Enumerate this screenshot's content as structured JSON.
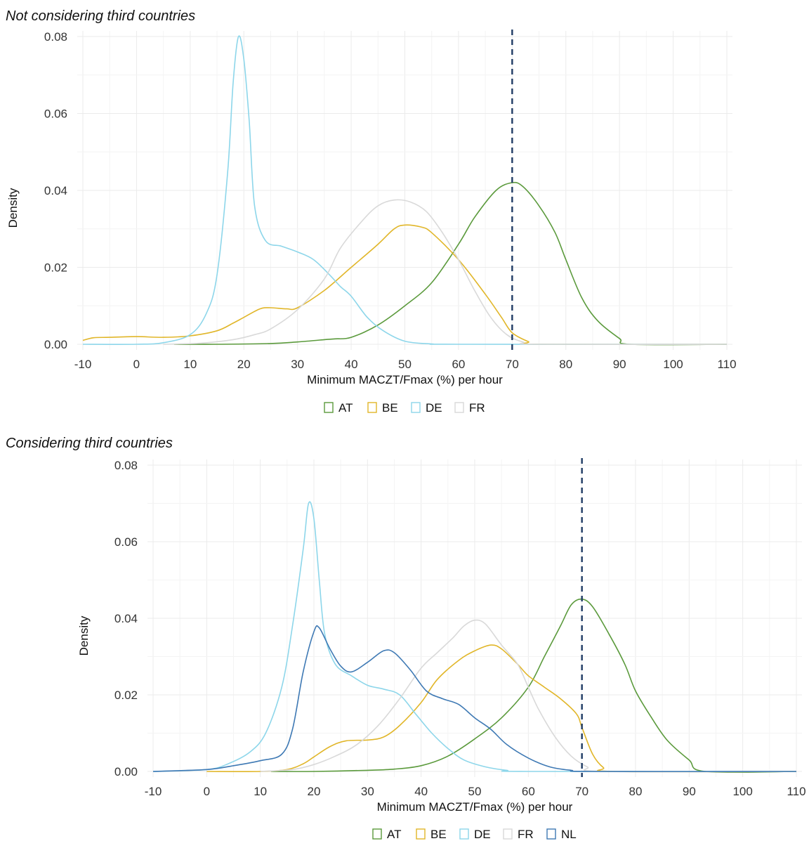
{
  "panels": [
    {
      "title": "Not considering third countries"
    },
    {
      "title": "Considering third countries"
    }
  ],
  "chart_data": [
    {
      "type": "line",
      "title": "Not considering third countries",
      "xlabel": "Minimum MACZT/Fmax (%) per hour",
      "ylabel": "Density",
      "xlim": [
        -10,
        110
      ],
      "ylim": [
        0,
        0.08
      ],
      "xticks": [
        "-10",
        "0",
        "10",
        "20",
        "30",
        "40",
        "50",
        "60",
        "70",
        "80",
        "90",
        "100",
        "110"
      ],
      "yticks": [
        "0.00",
        "0.02",
        "0.04",
        "0.06",
        "0.08"
      ],
      "grid": true,
      "legend_position": "bottom",
      "reference_line": {
        "x": 70,
        "style": "dashed",
        "color": "#1f3b64"
      },
      "series": [
        {
          "name": "AT",
          "color": "#5b9a3c",
          "points": [
            [
              7,
              0
            ],
            [
              15,
              0
            ],
            [
              25,
              0.0002
            ],
            [
              30,
              0.0006
            ],
            [
              35,
              0.0012
            ],
            [
              37,
              0.0014
            ],
            [
              40,
              0.0018
            ],
            [
              45,
              0.005
            ],
            [
              50,
              0.01
            ],
            [
              55,
              0.016
            ],
            [
              60,
              0.026
            ],
            [
              63,
              0.033
            ],
            [
              67,
              0.04
            ],
            [
              70,
              0.042
            ],
            [
              72,
              0.041
            ],
            [
              75,
              0.036
            ],
            [
              78,
              0.029
            ],
            [
              80,
              0.022
            ],
            [
              83,
              0.012
            ],
            [
              86,
              0.006
            ],
            [
              90,
              0.0015
            ],
            [
              92,
              0
            ],
            [
              110,
              0
            ]
          ]
        },
        {
          "name": "BE",
          "color": "#e1b629",
          "points": [
            [
              -10,
              0.001
            ],
            [
              -8,
              0.0017
            ],
            [
              -5,
              0.0018
            ],
            [
              0,
              0.002
            ],
            [
              5,
              0.0018
            ],
            [
              10,
              0.0022
            ],
            [
              15,
              0.0035
            ],
            [
              18,
              0.0055
            ],
            [
              20,
              0.007
            ],
            [
              23,
              0.0092
            ],
            [
              25,
              0.0095
            ],
            [
              28,
              0.0092
            ],
            [
              30,
              0.0095
            ],
            [
              35,
              0.014
            ],
            [
              40,
              0.02
            ],
            [
              45,
              0.026
            ],
            [
              48,
              0.03
            ],
            [
              50,
              0.031
            ],
            [
              53,
              0.0305
            ],
            [
              55,
              0.029
            ],
            [
              60,
              0.022
            ],
            [
              65,
              0.013
            ],
            [
              68,
              0.007
            ],
            [
              70,
              0.003
            ],
            [
              73,
              0.0007
            ],
            [
              75,
              0
            ],
            [
              110,
              0
            ]
          ]
        },
        {
          "name": "DE",
          "color": "#8dd6ea",
          "points": [
            [
              -10,
              0
            ],
            [
              0,
              0
            ],
            [
              5,
              0.0004
            ],
            [
              10,
              0.0025
            ],
            [
              13,
              0.008
            ],
            [
              15,
              0.018
            ],
            [
              17,
              0.045
            ],
            [
              18,
              0.068
            ],
            [
              19,
              0.08
            ],
            [
              20,
              0.074
            ],
            [
              21,
              0.058
            ],
            [
              22,
              0.036
            ],
            [
              24,
              0.027
            ],
            [
              27,
              0.0255
            ],
            [
              30,
              0.024
            ],
            [
              33,
              0.022
            ],
            [
              36,
              0.018
            ],
            [
              38,
              0.015
            ],
            [
              40,
              0.0125
            ],
            [
              43,
              0.007
            ],
            [
              46,
              0.0035
            ],
            [
              50,
              0.0008
            ],
            [
              55,
              0.0001
            ],
            [
              60,
              0
            ],
            [
              110,
              0
            ]
          ]
        },
        {
          "name": "FR",
          "color": "#d9d9d9",
          "points": [
            [
              5,
              0
            ],
            [
              12,
              0.0003
            ],
            [
              18,
              0.0012
            ],
            [
              22,
              0.0025
            ],
            [
              25,
              0.004
            ],
            [
              30,
              0.009
            ],
            [
              35,
              0.017
            ],
            [
              38,
              0.025
            ],
            [
              42,
              0.032
            ],
            [
              45,
              0.036
            ],
            [
              48,
              0.0375
            ],
            [
              51,
              0.037
            ],
            [
              54,
              0.0345
            ],
            [
              57,
              0.029
            ],
            [
              60,
              0.022
            ],
            [
              63,
              0.014
            ],
            [
              66,
              0.007
            ],
            [
              69,
              0.0025
            ],
            [
              72,
              0.0006
            ],
            [
              75,
              0
            ],
            [
              110,
              0
            ]
          ]
        }
      ]
    },
    {
      "type": "line",
      "title": "Considering third countries",
      "xlabel": "Minimum MACZT/Fmax (%) per hour",
      "ylabel": "Density",
      "xlim": [
        -10,
        110
      ],
      "ylim": [
        0,
        0.08
      ],
      "xticks": [
        "-10",
        "0",
        "10",
        "20",
        "30",
        "40",
        "50",
        "60",
        "70",
        "80",
        "90",
        "100",
        "110"
      ],
      "yticks": [
        "0.00",
        "0.02",
        "0.04",
        "0.06",
        "0.08"
      ],
      "grid": true,
      "legend_position": "bottom",
      "reference_line": {
        "x": 70,
        "style": "dashed",
        "color": "#1f3b64"
      },
      "series": [
        {
          "name": "AT",
          "color": "#5b9a3c",
          "points": [
            [
              12,
              0
            ],
            [
              20,
              0
            ],
            [
              30,
              0.0003
            ],
            [
              35,
              0.0006
            ],
            [
              40,
              0.0015
            ],
            [
              45,
              0.004
            ],
            [
              50,
              0.0085
            ],
            [
              55,
              0.014
            ],
            [
              60,
              0.022
            ],
            [
              63,
              0.03
            ],
            [
              66,
              0.038
            ],
            [
              68,
              0.0435
            ],
            [
              70,
              0.045
            ],
            [
              72,
              0.043
            ],
            [
              75,
              0.036
            ],
            [
              78,
              0.028
            ],
            [
              80,
              0.021
            ],
            [
              83,
              0.014
            ],
            [
              86,
              0.008
            ],
            [
              90,
              0.003
            ],
            [
              93,
              0
            ],
            [
              110,
              0
            ]
          ]
        },
        {
          "name": "BE",
          "color": "#e1b629",
          "points": [
            [
              0,
              0
            ],
            [
              10,
              0
            ],
            [
              15,
              0.0005
            ],
            [
              18,
              0.002
            ],
            [
              20,
              0.0038
            ],
            [
              23,
              0.0065
            ],
            [
              26,
              0.008
            ],
            [
              30,
              0.0082
            ],
            [
              33,
              0.009
            ],
            [
              36,
              0.012
            ],
            [
              40,
              0.018
            ],
            [
              43,
              0.024
            ],
            [
              47,
              0.029
            ],
            [
              50,
              0.0315
            ],
            [
              53,
              0.033
            ],
            [
              55,
              0.032
            ],
            [
              58,
              0.028
            ],
            [
              60,
              0.025
            ],
            [
              63,
              0.022
            ],
            [
              66,
              0.019
            ],
            [
              69,
              0.015
            ],
            [
              70,
              0.0115
            ],
            [
              72,
              0.0045
            ],
            [
              74,
              0.001
            ],
            [
              76,
              0
            ],
            [
              110,
              0
            ]
          ]
        },
        {
          "name": "DE",
          "color": "#8dd6ea",
          "points": [
            [
              -10,
              0
            ],
            [
              0,
              0.0005
            ],
            [
              4,
              0.002
            ],
            [
              8,
              0.005
            ],
            [
              11,
              0.01
            ],
            [
              14,
              0.022
            ],
            [
              16,
              0.038
            ],
            [
              18,
              0.058
            ],
            [
              19,
              0.07
            ],
            [
              20,
              0.066
            ],
            [
              21,
              0.05
            ],
            [
              22,
              0.036
            ],
            [
              24,
              0.028
            ],
            [
              27,
              0.025
            ],
            [
              30,
              0.0225
            ],
            [
              33,
              0.0215
            ],
            [
              36,
              0.02
            ],
            [
              39,
              0.015
            ],
            [
              42,
              0.01
            ],
            [
              45,
              0.006
            ],
            [
              48,
              0.003
            ],
            [
              52,
              0.0012
            ],
            [
              56,
              0.0003
            ],
            [
              60,
              0
            ],
            [
              110,
              0
            ]
          ]
        },
        {
          "name": "FR",
          "color": "#d9d9d9",
          "points": [
            [
              10,
              0
            ],
            [
              16,
              0.0005
            ],
            [
              20,
              0.0018
            ],
            [
              24,
              0.004
            ],
            [
              28,
              0.007
            ],
            [
              32,
              0.012
            ],
            [
              36,
              0.019
            ],
            [
              40,
              0.027
            ],
            [
              43,
              0.031
            ],
            [
              46,
              0.035
            ],
            [
              48,
              0.038
            ],
            [
              50,
              0.0395
            ],
            [
              52,
              0.0385
            ],
            [
              55,
              0.033
            ],
            [
              58,
              0.028
            ],
            [
              60,
              0.022
            ],
            [
              62,
              0.016
            ],
            [
              65,
              0.009
            ],
            [
              68,
              0.004
            ],
            [
              71,
              0.0012
            ],
            [
              74,
              0
            ],
            [
              110,
              0
            ]
          ]
        },
        {
          "name": "NL",
          "color": "#3e79b4",
          "points": [
            [
              -10,
              0
            ],
            [
              0,
              0.0005
            ],
            [
              5,
              0.0015
            ],
            [
              10,
              0.0028
            ],
            [
              14,
              0.0045
            ],
            [
              16,
              0.011
            ],
            [
              18,
              0.026
            ],
            [
              20,
              0.0365
            ],
            [
              21,
              0.0375
            ],
            [
              23,
              0.032
            ],
            [
              25,
              0.0275
            ],
            [
              27,
              0.026
            ],
            [
              30,
              0.0285
            ],
            [
              33,
              0.0315
            ],
            [
              35,
              0.031
            ],
            [
              38,
              0.0265
            ],
            [
              41,
              0.021
            ],
            [
              44,
              0.019
            ],
            [
              47,
              0.0175
            ],
            [
              50,
              0.014
            ],
            [
              53,
              0.011
            ],
            [
              56,
              0.007
            ],
            [
              60,
              0.0035
            ],
            [
              64,
              0.0012
            ],
            [
              68,
              0.0003
            ],
            [
              72,
              0
            ],
            [
              110,
              0
            ]
          ]
        }
      ]
    }
  ]
}
